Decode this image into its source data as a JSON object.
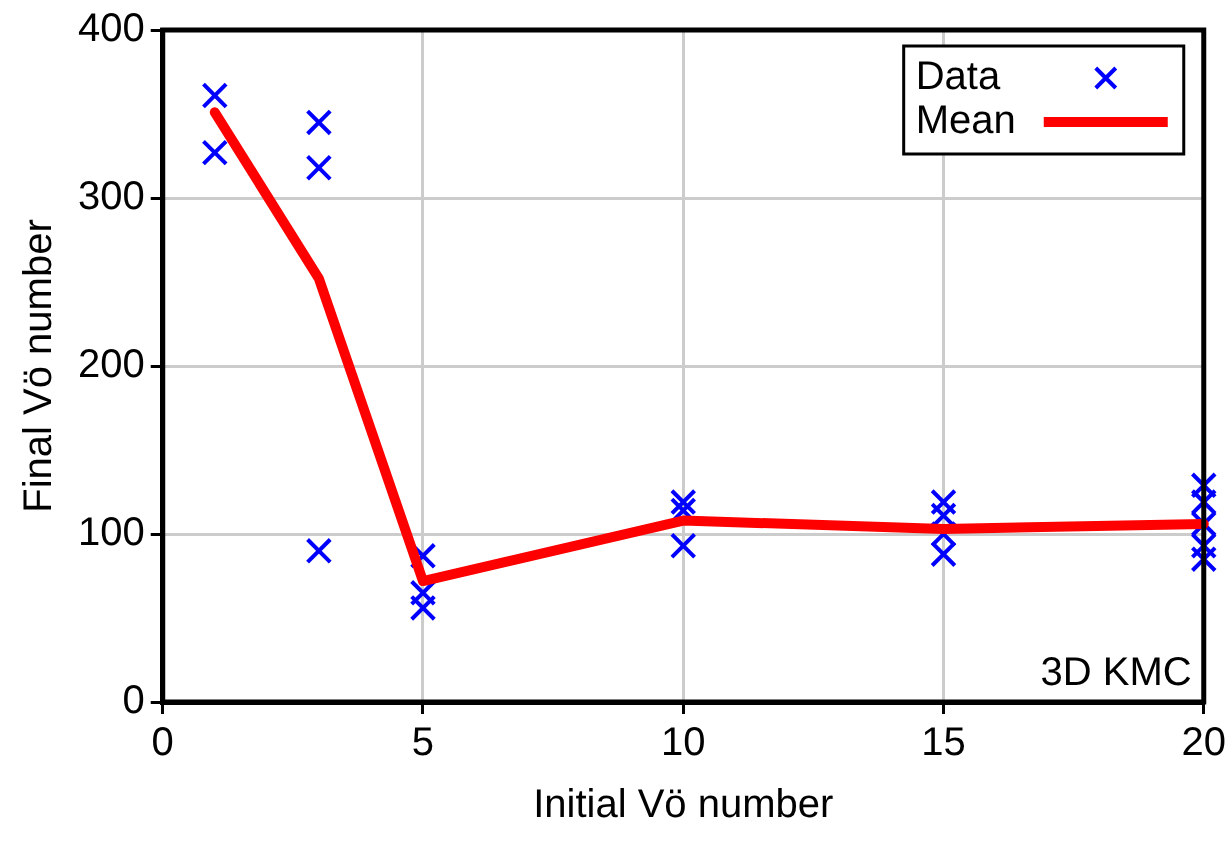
{
  "chart_data": {
    "type": "scatter",
    "xlabel": "Initial Vö number",
    "ylabel": "Final Vö number",
    "xlim": [
      0,
      20
    ],
    "xticks": [
      0,
      5,
      10,
      15,
      20
    ],
    "ylim": [
      0,
      400
    ],
    "yticks": [
      0,
      100,
      200,
      300,
      400
    ],
    "grid": true,
    "legend": "top right",
    "marker": "cross",
    "annotations": [
      "3D KMC"
    ],
    "series": [
      {
        "name": "Data",
        "color": "#0000ff",
        "x": [
          1,
          1,
          3,
          3,
          3,
          5,
          5,
          5,
          10,
          10,
          10,
          15,
          15,
          15,
          15,
          20,
          20,
          20,
          20,
          20
        ],
        "values": [
          361,
          327,
          345,
          318,
          90,
          87,
          65,
          56,
          119,
          114,
          93,
          119,
          111,
          100,
          88,
          129,
          119,
          106,
          93,
          85
        ]
      },
      {
        "name": "Mean",
        "type": "line",
        "color": "#ff0000",
        "marker": "none",
        "x": [
          1,
          3,
          5,
          10,
          15,
          20
        ],
        "values": [
          351,
          252,
          72,
          108,
          103,
          106
        ]
      }
    ]
  }
}
